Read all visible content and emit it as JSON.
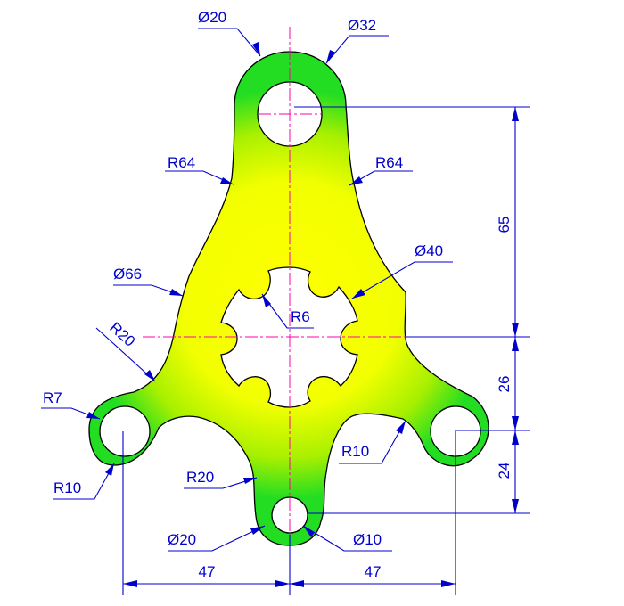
{
  "labels": {
    "top_hole_diameter": "Ø20",
    "top_boss_diameter": "Ø32",
    "left_upper_radius": "R64",
    "right_upper_radius": "R64",
    "left_waist_diameter": "Ø66",
    "right_waist_diameter": "Ø40",
    "left_fillet_radius": "R20",
    "spline_radius": "R6",
    "left_boss_radius": "R7",
    "left_hole_radius": "R10",
    "bottom_left_fillet": "R20",
    "right_fillet": "R10",
    "bottom_hole_outer": "Ø20",
    "bottom_hole_inner": "Ø10",
    "dim_vertical_65": "65",
    "dim_vertical_26": "26",
    "dim_vertical_24": "24",
    "dim_horizontal_left": "47",
    "dim_horizontal_right": "47"
  },
  "colors": {
    "dimension": "#0000cc",
    "center_line": "#ff00aa",
    "fill_yellow": "#ffff00",
    "fill_green": "#22dd22",
    "outline": "#000000"
  }
}
